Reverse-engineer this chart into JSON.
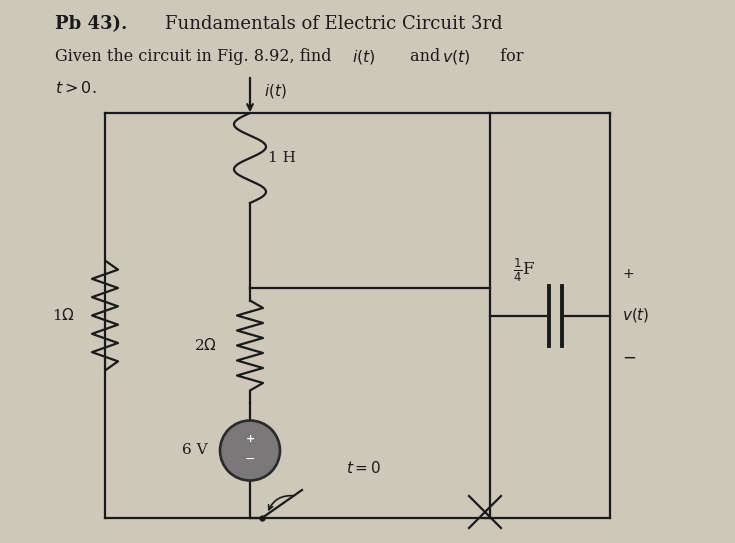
{
  "title_bold": "Pb 43).",
  "title_regular": " Fundamentals of Electric Circuit 3rd",
  "subtitle": "Given the circuit in Fig. 8.92, find ",
  "subtitle2": "t > 0.",
  "bg_color": "#cec8ba",
  "text_color": "#1a1a1a",
  "title_fontsize": 13,
  "subtitle_fontsize": 11.5,
  "component_fontsize": 11,
  "lw": 1.6
}
